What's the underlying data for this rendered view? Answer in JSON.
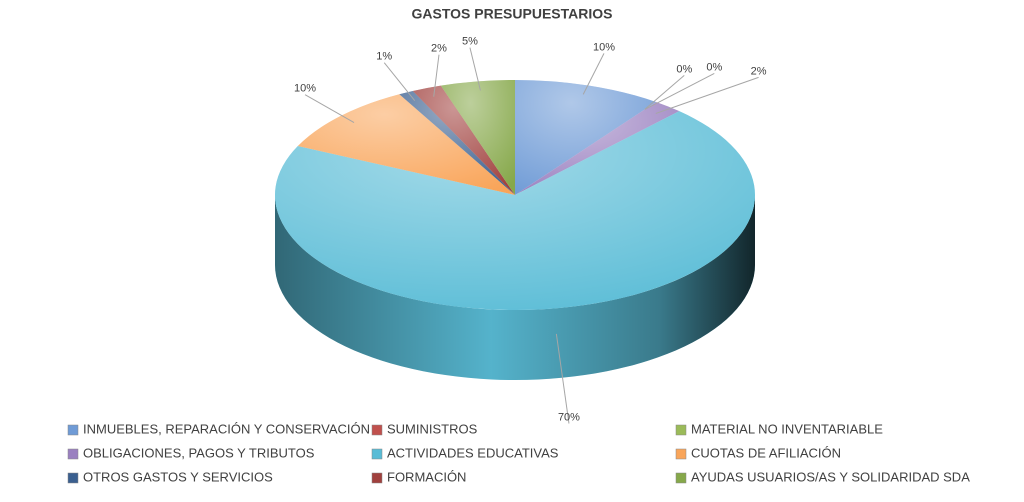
{
  "chart_data": {
    "type": "pie3d",
    "title": "GASTOS PRESUPUESTARIOS",
    "categories": [
      "INMUEBLES, REPARACIÓN Y CONSERVACIÓN",
      "SUMINISTROS",
      "MATERIAL NO INVENTARIABLE",
      "OBLIGACIONES, PAGOS Y TRIBUTOS",
      "ACTIVIDADES EDUCATIVAS",
      "CUOTAS DE AFILIACIÓN",
      "OTROS GASTOS Y SERVICIOS",
      "FORMACIÓN",
      "AYUDAS USUARIOS/AS Y SOLIDARIDAD SDA"
    ],
    "values": [
      10,
      0,
      0,
      2,
      70,
      10,
      1,
      2,
      5
    ],
    "value_labels": [
      "10%",
      "0%",
      "0%",
      "2%",
      "70%",
      "10%",
      "1%",
      "2%",
      "5%"
    ],
    "colors": [
      "#6f9bd6",
      "#c0504d",
      "#9bbb59",
      "#9a80c0",
      "#59bcd6",
      "#f9a55a",
      "#3a5f8f",
      "#a0403d",
      "#86a84a"
    ],
    "legend": "bottom"
  }
}
